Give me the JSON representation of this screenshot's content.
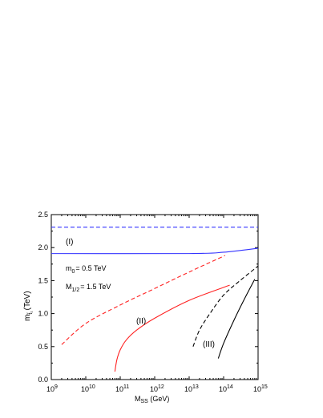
{
  "chart_data": {
    "type": "line",
    "title": "",
    "xlabel": {
      "text": "M",
      "sub": "SS",
      "unit": " (GeV)"
    },
    "ylabel": {
      "text": "m",
      "sub": "t̃₁",
      "unit": "(TeV)"
    },
    "x_scale": "log",
    "xlim": [
      1000000000.0,
      1000000000000000.0
    ],
    "ylim": [
      0.0,
      2.5
    ],
    "grid": false,
    "x_ticks": [
      {
        "base": "10",
        "exp": "9",
        "value": 1000000000.0
      },
      {
        "base": "10",
        "exp": "10",
        "value": 10000000000.0
      },
      {
        "base": "10",
        "exp": "11",
        "value": 100000000000.0
      },
      {
        "base": "10",
        "exp": "12",
        "value": 1000000000000.0
      },
      {
        "base": "10",
        "exp": "13",
        "value": 10000000000000.0
      },
      {
        "base": "10",
        "exp": "14",
        "value": 100000000000000.0
      },
      {
        "base": "10",
        "exp": "15",
        "value": 1000000000000000.0
      }
    ],
    "y_ticks": [
      "0.0",
      "0.5",
      "1.0",
      "1.5",
      "2.0",
      "2.5"
    ],
    "series": [
      {
        "id": "I-dashed",
        "color": "#3333ff",
        "dash": true,
        "x": [
          1000000000.0,
          1000000000000000.0
        ],
        "y": [
          2.31,
          2.31
        ]
      },
      {
        "id": "I-solid",
        "color": "#3333ff",
        "dash": false,
        "x": [
          1000000000.0,
          10000000000000.0,
          100000000000000.0,
          1000000000000000.0
        ],
        "y": [
          1.91,
          1.91,
          1.93,
          1.99
        ]
      },
      {
        "id": "II-dashed",
        "color": "#ff2222",
        "dash": true,
        "x": [
          2000000000.0,
          10000000000.0,
          100000000000.0,
          1000000000000.0,
          10000000000000.0,
          110000000000000.0
        ],
        "y": [
          0.53,
          0.85,
          1.13,
          1.38,
          1.63,
          1.88
        ]
      },
      {
        "id": "II-solid",
        "color": "#ff2222",
        "dash": false,
        "x": [
          70000000000.0,
          80000000000.0,
          100000000000.0,
          150000000000.0,
          300000000000.0,
          1000000000000.0,
          10000000000000.0,
          150000000000000.0
        ],
        "y": [
          0.12,
          0.3,
          0.45,
          0.6,
          0.75,
          0.93,
          1.2,
          1.43
        ]
      },
      {
        "id": "III-dashed",
        "color": "#000000",
        "dash": true,
        "x": [
          13000000000000.0,
          20000000000000.0,
          40000000000000.0,
          100000000000000.0,
          300000000000000.0,
          1000000000000000.0
        ],
        "y": [
          0.5,
          0.75,
          1.0,
          1.28,
          1.5,
          1.72
        ]
      },
      {
        "id": "III-solid",
        "color": "#000000",
        "dash": false,
        "x": [
          70000000000000.0,
          100000000000000.0,
          200000000000000.0,
          400000000000000.0,
          800000000000000.0
        ],
        "y": [
          0.32,
          0.55,
          0.9,
          1.22,
          1.52
        ]
      }
    ],
    "annotations": [
      {
        "text": "(I)",
        "color": "#3333ff"
      },
      {
        "text": "(II)",
        "color": "#ff2222"
      },
      {
        "text": "(III)",
        "color": "#000000"
      }
    ],
    "params": {
      "m0": {
        "main": "m",
        "sub": "0",
        "rest": "= 0.5 TeV"
      },
      "M12": {
        "main": "M",
        "sub": "1/2",
        "rest": "= 1.5 TeV"
      }
    }
  }
}
